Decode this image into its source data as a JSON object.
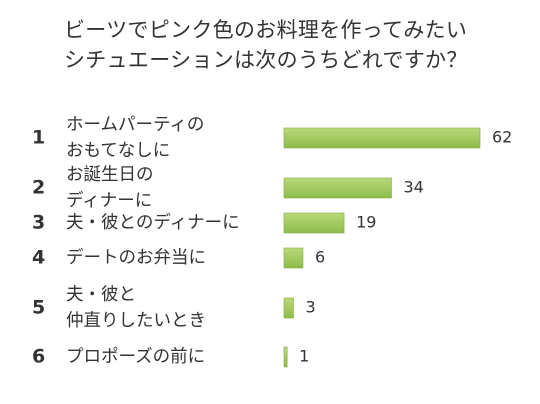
{
  "chart_data": {
    "type": "bar",
    "orientation": "horizontal",
    "title_lines": [
      "ビーツでピンク色のお料理を作ってみたい",
      "シチュエーションは次のうちどれですか？"
    ],
    "rank_labels": [
      "1",
      "2",
      "3",
      "4",
      "5",
      "6"
    ],
    "categories": [
      [
        "ホームパーティの",
        "おもてなしに"
      ],
      [
        "お誕生日の",
        "ディナーに"
      ],
      [
        "夫・彼とのディナーに"
      ],
      [
        "デートのお弁当に"
      ],
      [
        "夫・彼と",
        "仲直りしたいとき"
      ],
      [
        "プロポーズの前に"
      ]
    ],
    "values": [
      62,
      34,
      19,
      6,
      3,
      1
    ],
    "xlim": [
      0,
      62
    ],
    "grid": false,
    "legend": "none",
    "colors": {
      "bar_top": "#b9d97a",
      "bar_bottom": "#8dbc4a",
      "bar_stroke": "#7fae3f",
      "text": "#333333"
    }
  }
}
